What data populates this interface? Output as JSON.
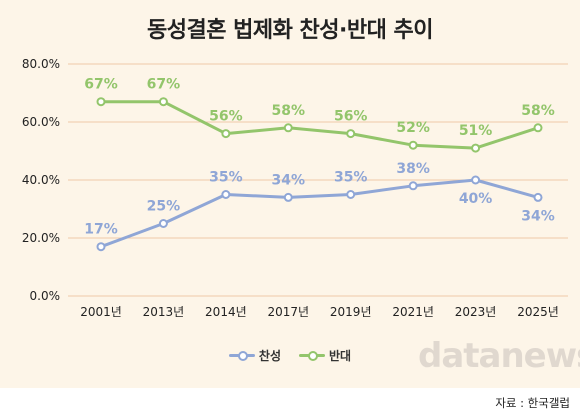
{
  "source": "자료 : 한국갤럽",
  "watermark": "datanews",
  "colors": {
    "background": "#fdf5e8",
    "grid": "#f0c9a8",
    "support": "#8fa6d6",
    "oppose": "#93c56b"
  },
  "chart_data": {
    "type": "line",
    "title": "동성결혼 법제화 찬성·반대 추이",
    "xlabel": "",
    "ylabel": "",
    "categories": [
      "2001년",
      "2013년",
      "2014년",
      "2017년",
      "2019년",
      "2021년",
      "2023년",
      "2025년"
    ],
    "ylim": [
      0,
      80
    ],
    "yticks": [
      "0.0%",
      "20.0%",
      "40.0%",
      "60.0%",
      "80.0%"
    ],
    "ytick_values": [
      0,
      20,
      40,
      60,
      80
    ],
    "grid": true,
    "legend_position": "bottom",
    "series": [
      {
        "name": "찬성",
        "color": "#8fa6d6",
        "values": [
          17,
          25,
          35,
          34,
          35,
          38,
          40,
          34
        ],
        "labels": [
          "17%",
          "25%",
          "35%",
          "34%",
          "35%",
          "38%",
          "40%",
          "34%"
        ]
      },
      {
        "name": "반대",
        "color": "#93c56b",
        "values": [
          67,
          67,
          56,
          58,
          56,
          52,
          51,
          58
        ],
        "labels": [
          "67%",
          "67%",
          "56%",
          "58%",
          "56%",
          "52%",
          "51%",
          "58%"
        ]
      }
    ]
  }
}
